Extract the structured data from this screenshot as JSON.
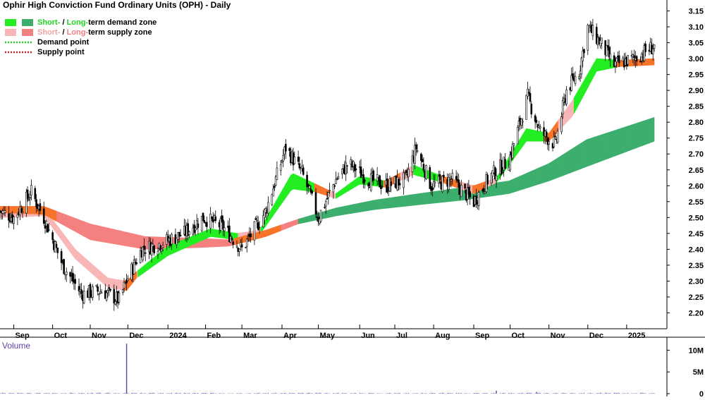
{
  "chart_data": {
    "type": "candlestick",
    "title": "Ophir High Conviction Fund Ordinary Units (OPH) - Daily",
    "legend": [
      {
        "parts": [
          {
            "text": "Short-",
            "color": "#1fd61f"
          },
          {
            "text": " / ",
            "color": "#000000"
          },
          {
            "text": "Long-",
            "color": "#1fd61f"
          },
          {
            "text": "term demand zone",
            "color": "#000000"
          }
        ],
        "swatches": [
          "#22ee22",
          "#3cae6e"
        ],
        "style": "zone"
      },
      {
        "parts": [
          {
            "text": "Short-",
            "color": "#f4a0a0"
          },
          {
            "text": " / ",
            "color": "#000000"
          },
          {
            "text": "Long-",
            "color": "#f08080"
          },
          {
            "text": "term supply zone",
            "color": "#000000"
          }
        ],
        "swatches": [
          "#f9b6b6",
          "#f58080"
        ],
        "style": "zone"
      },
      {
        "parts": [
          {
            "text": "Demand point",
            "color": "#000000"
          }
        ],
        "swatches": [
          "#22cc22"
        ],
        "style": "dotted"
      },
      {
        "parts": [
          {
            "text": "Supply point",
            "color": "#000000"
          }
        ],
        "swatches": [
          "#e02020"
        ],
        "style": "dotted"
      }
    ],
    "x_axis": {
      "start": "2023-08-21",
      "end": "2025-01-24",
      "ticks": [
        {
          "label": "Sep",
          "date": "2023-09-01"
        },
        {
          "label": "Oct",
          "date": "2023-10-02"
        },
        {
          "label": "Nov",
          "date": "2023-11-01"
        },
        {
          "label": "Dec",
          "date": "2023-12-01"
        },
        {
          "label": "2024",
          "date": "2024-01-02"
        },
        {
          "label": "Feb",
          "date": "2024-02-01"
        },
        {
          "label": "Mar",
          "date": "2024-03-01"
        },
        {
          "label": "Apr",
          "date": "2024-04-02"
        },
        {
          "label": "May",
          "date": "2024-05-01"
        },
        {
          "label": "Jun",
          "date": "2024-06-03"
        },
        {
          "label": "Jul",
          "date": "2024-07-01"
        },
        {
          "label": "Aug",
          "date": "2024-08-01"
        },
        {
          "label": "Sep",
          "date": "2024-09-02"
        },
        {
          "label": "Oct",
          "date": "2024-10-01"
        },
        {
          "label": "Nov",
          "date": "2024-11-01"
        },
        {
          "label": "Dec",
          "date": "2024-12-02"
        },
        {
          "label": "2025",
          "date": "2025-01-02"
        }
      ]
    },
    "price_axis": {
      "min": 2.15,
      "max": 3.18,
      "ticks": [
        "3.15",
        "3.10",
        "3.05",
        "3.00",
        "2.95",
        "2.90",
        "2.85",
        "2.80",
        "2.75",
        "2.70",
        "2.65",
        "2.60",
        "2.55",
        "2.50",
        "2.45",
        "2.40",
        "2.35",
        "2.30",
        "2.25",
        "2.20"
      ]
    },
    "volume_panel": {
      "label": "Volume",
      "ticks": [
        {
          "label": "10M",
          "value": 10000000
        },
        {
          "label": "5M",
          "value": 5000000
        },
        {
          "label": "0",
          "value": 0
        }
      ],
      "max": 12500000,
      "base_volume": 120000,
      "spikes": [
        {
          "date": "2023-11-30",
          "value": 11500000
        },
        {
          "date": "2024-09-20",
          "value": 700000
        },
        {
          "date": "2024-10-22",
          "value": 400000
        }
      ]
    },
    "close_path": [
      {
        "date": "2023-08-21",
        "close": 2.52
      },
      {
        "date": "2023-09-01",
        "close": 2.5
      },
      {
        "date": "2023-09-15",
        "close": 2.58
      },
      {
        "date": "2023-09-25",
        "close": 2.5
      },
      {
        "date": "2023-10-10",
        "close": 2.35
      },
      {
        "date": "2023-10-25",
        "close": 2.26
      },
      {
        "date": "2023-11-10",
        "close": 2.27
      },
      {
        "date": "2023-11-24",
        "close": 2.24
      },
      {
        "date": "2023-12-01",
        "close": 2.31
      },
      {
        "date": "2023-12-12",
        "close": 2.4
      },
      {
        "date": "2023-12-28",
        "close": 2.42
      },
      {
        "date": "2024-01-15",
        "close": 2.45
      },
      {
        "date": "2024-01-30",
        "close": 2.5
      },
      {
        "date": "2024-02-15",
        "close": 2.47
      },
      {
        "date": "2024-03-01",
        "close": 2.4
      },
      {
        "date": "2024-03-20",
        "close": 2.52
      },
      {
        "date": "2024-04-05",
        "close": 2.72
      },
      {
        "date": "2024-04-18",
        "close": 2.64
      },
      {
        "date": "2024-05-01",
        "close": 2.5
      },
      {
        "date": "2024-05-15",
        "close": 2.62
      },
      {
        "date": "2024-05-25",
        "close": 2.67
      },
      {
        "date": "2024-06-10",
        "close": 2.62
      },
      {
        "date": "2024-06-25",
        "close": 2.6
      },
      {
        "date": "2024-07-10",
        "close": 2.62
      },
      {
        "date": "2024-07-18",
        "close": 2.72
      },
      {
        "date": "2024-07-30",
        "close": 2.6
      },
      {
        "date": "2024-08-15",
        "close": 2.62
      },
      {
        "date": "2024-09-02",
        "close": 2.55
      },
      {
        "date": "2024-09-15",
        "close": 2.63
      },
      {
        "date": "2024-09-30",
        "close": 2.68
      },
      {
        "date": "2024-10-15",
        "close": 2.88
      },
      {
        "date": "2024-10-25",
        "close": 2.77
      },
      {
        "date": "2024-11-06",
        "close": 2.73
      },
      {
        "date": "2024-11-15",
        "close": 2.9
      },
      {
        "date": "2024-11-25",
        "close": 2.96
      },
      {
        "date": "2024-12-02",
        "close": 3.1
      },
      {
        "date": "2024-12-12",
        "close": 3.05
      },
      {
        "date": "2024-12-23",
        "close": 2.98
      },
      {
        "date": "2025-01-08",
        "close": 3.0
      },
      {
        "date": "2025-01-24",
        "close": 3.04
      }
    ],
    "short_term_zone": [
      {
        "date": "2023-08-21",
        "upper": 2.535,
        "lower": 2.5,
        "zone": "supply"
      },
      {
        "date": "2023-09-25",
        "upper": 2.53,
        "lower": 2.505,
        "zone": "supply"
      },
      {
        "date": "2023-10-20",
        "upper": 2.4,
        "lower": 2.37,
        "zone": "supply"
      },
      {
        "date": "2023-11-15",
        "upper": 2.31,
        "lower": 2.28,
        "zone": "supply"
      },
      {
        "date": "2023-11-30",
        "upper": 2.3,
        "lower": 2.27,
        "zone": "supply"
      },
      {
        "date": "2023-12-08",
        "upper": 2.33,
        "lower": 2.31,
        "zone": "demand"
      },
      {
        "date": "2024-01-02",
        "upper": 2.41,
        "lower": 2.38,
        "zone": "demand"
      },
      {
        "date": "2024-02-05",
        "upper": 2.465,
        "lower": 2.44,
        "zone": "demand"
      },
      {
        "date": "2024-02-26",
        "upper": 2.45,
        "lower": 2.43,
        "zone": "supply"
      },
      {
        "date": "2024-03-15",
        "upper": 2.46,
        "lower": 2.445,
        "zone": "demand"
      },
      {
        "date": "2024-04-10",
        "upper": 2.64,
        "lower": 2.59,
        "zone": "demand"
      },
      {
        "date": "2024-04-29",
        "upper": 2.605,
        "lower": 2.58,
        "zone": "supply"
      },
      {
        "date": "2024-05-15",
        "upper": 2.575,
        "lower": 2.56,
        "zone": "demand"
      },
      {
        "date": "2024-06-03",
        "upper": 2.63,
        "lower": 2.605,
        "zone": "demand"
      },
      {
        "date": "2024-06-24",
        "upper": 2.615,
        "lower": 2.595,
        "zone": "supply"
      },
      {
        "date": "2024-07-16",
        "upper": 2.665,
        "lower": 2.635,
        "zone": "demand"
      },
      {
        "date": "2024-08-08",
        "upper": 2.63,
        "lower": 2.61,
        "zone": "supply"
      },
      {
        "date": "2024-09-02",
        "upper": 2.6,
        "lower": 2.575,
        "zone": "supply"
      },
      {
        "date": "2024-09-20",
        "upper": 2.625,
        "lower": 2.61,
        "zone": "demand"
      },
      {
        "date": "2024-10-14",
        "upper": 2.78,
        "lower": 2.74,
        "zone": "demand"
      },
      {
        "date": "2024-11-01",
        "upper": 2.765,
        "lower": 2.74,
        "zone": "supply"
      },
      {
        "date": "2024-11-20",
        "upper": 2.87,
        "lower": 2.82,
        "zone": "demand"
      },
      {
        "date": "2024-12-09",
        "upper": 3.0,
        "lower": 2.96,
        "zone": "demand"
      },
      {
        "date": "2024-12-27",
        "upper": 2.995,
        "lower": 2.975,
        "zone": "supply"
      },
      {
        "date": "2025-01-24",
        "upper": 3.0,
        "lower": 2.98,
        "zone": "supply"
      }
    ],
    "long_term_zone": [
      {
        "date": "2023-08-21",
        "upper": 2.535,
        "lower": 2.515,
        "zone": "supply"
      },
      {
        "date": "2023-09-25",
        "upper": 2.535,
        "lower": 2.51,
        "zone": "supply"
      },
      {
        "date": "2023-11-01",
        "upper": 2.48,
        "lower": 2.43,
        "zone": "supply"
      },
      {
        "date": "2023-12-15",
        "upper": 2.44,
        "lower": 2.4,
        "zone": "supply"
      },
      {
        "date": "2024-01-25",
        "upper": 2.435,
        "lower": 2.405,
        "zone": "supply"
      },
      {
        "date": "2024-02-20",
        "upper": 2.43,
        "lower": 2.41,
        "zone": "supply"
      },
      {
        "date": "2024-03-20",
        "upper": 2.46,
        "lower": 2.44,
        "zone": "supply"
      },
      {
        "date": "2024-04-15",
        "upper": 2.495,
        "lower": 2.48,
        "zone": "demand"
      },
      {
        "date": "2024-05-15",
        "upper": 2.53,
        "lower": 2.505,
        "zone": "demand"
      },
      {
        "date": "2024-06-15",
        "upper": 2.555,
        "lower": 2.525,
        "zone": "demand"
      },
      {
        "date": "2024-07-20",
        "upper": 2.575,
        "lower": 2.54,
        "zone": "demand"
      },
      {
        "date": "2024-08-25",
        "upper": 2.595,
        "lower": 2.555,
        "zone": "demand"
      },
      {
        "date": "2024-09-30",
        "upper": 2.615,
        "lower": 2.575,
        "zone": "demand"
      },
      {
        "date": "2024-11-01",
        "upper": 2.67,
        "lower": 2.615,
        "zone": "demand"
      },
      {
        "date": "2024-12-01",
        "upper": 2.745,
        "lower": 2.66,
        "zone": "demand"
      },
      {
        "date": "2025-01-24",
        "upper": 2.815,
        "lower": 2.74,
        "zone": "demand"
      }
    ],
    "colors": {
      "candle": "#000000",
      "demand_short": "#22ee22",
      "demand_long": "#3cae6e",
      "supply_short": "#f9b6b6",
      "supply_long": "#f58080",
      "zone_orange": "#f7742a",
      "volume": "#6040a8",
      "axis": "#000000",
      "month_ticks": "#000000",
      "title": "#000000",
      "axis_labels": "#000000"
    }
  }
}
